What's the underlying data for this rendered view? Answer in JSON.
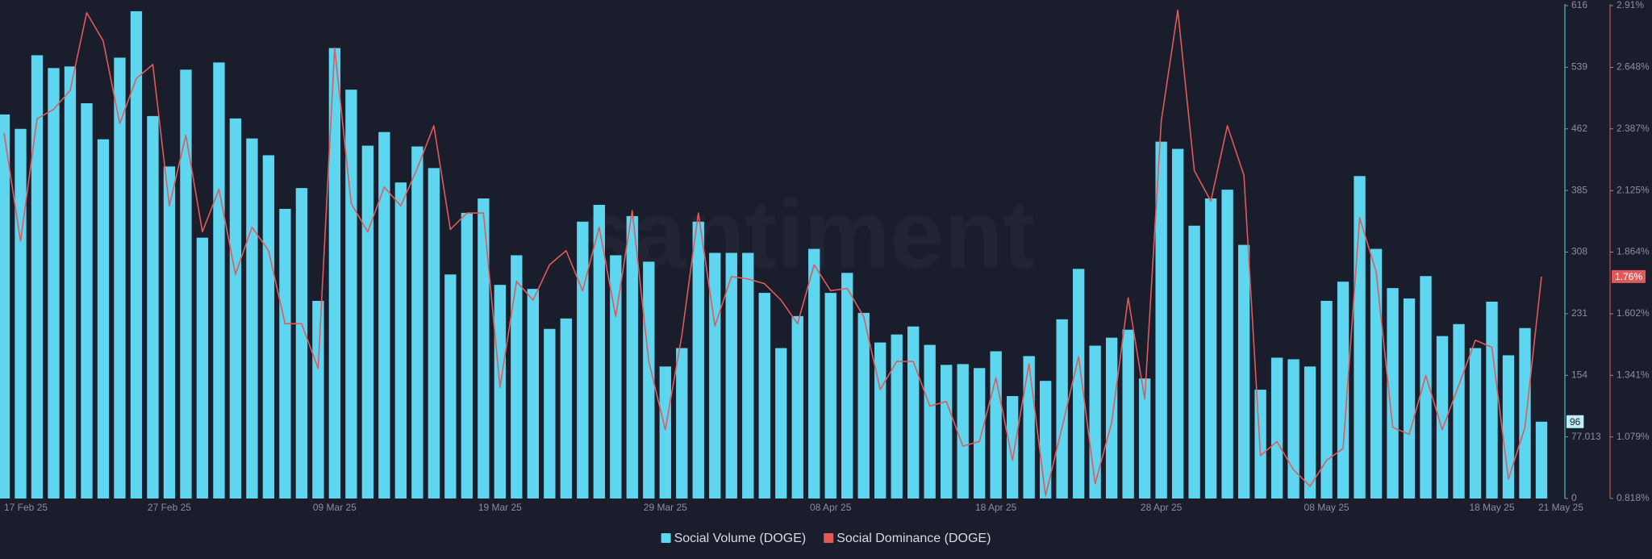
{
  "chart_data": {
    "type": "bar",
    "watermark": "santiment",
    "categories": [
      "17 Feb 25",
      null,
      null,
      null,
      null,
      null,
      null,
      null,
      null,
      null,
      "27 Feb 25",
      null,
      null,
      null,
      null,
      null,
      null,
      null,
      null,
      null,
      "09 Mar 25",
      null,
      null,
      null,
      null,
      null,
      null,
      null,
      null,
      null,
      "19 Mar 25",
      null,
      null,
      null,
      null,
      null,
      null,
      null,
      null,
      null,
      "29 Mar 25",
      null,
      null,
      null,
      null,
      null,
      null,
      null,
      null,
      null,
      "08 Apr 25",
      null,
      null,
      null,
      null,
      null,
      null,
      null,
      null,
      null,
      "18 Apr 25",
      null,
      null,
      null,
      null,
      null,
      null,
      null,
      null,
      null,
      "28 Apr 25",
      null,
      null,
      null,
      null,
      null,
      null,
      null,
      null,
      null,
      "08 May 25",
      null,
      null,
      null,
      null,
      null,
      null,
      null,
      null,
      null,
      "18 May 25",
      null,
      null,
      "21 May 25"
    ],
    "series": [
      {
        "name": "Social Volume (DOGE)",
        "type": "bar",
        "color": "#5ed6f0",
        "values": [
          480,
          462,
          554,
          538,
          540,
          494,
          449,
          551,
          609,
          478,
          415,
          536,
          326,
          545,
          475,
          450,
          429,
          362,
          388,
          247,
          563,
          511,
          441,
          458,
          395,
          440,
          413,
          280,
          357,
          375,
          267,
          304,
          262,
          212,
          225,
          346,
          367,
          304,
          353,
          296,
          165,
          188,
          346,
          307,
          307,
          307,
          257,
          188,
          228,
          312,
          257,
          282,
          232,
          195,
          205,
          215,
          192,
          167,
          168,
          163,
          184,
          128,
          178,
          147,
          224,
          287,
          191,
          201,
          211,
          150,
          446,
          437,
          341,
          375,
          386,
          317,
          136,
          176,
          174,
          165,
          247,
          271,
          403,
          312,
          263,
          250,
          278,
          203,
          218,
          188,
          246,
          179,
          213,
          96
        ]
      },
      {
        "name": "Social Dominance (DOGE)",
        "type": "line",
        "axis": "y2",
        "color": "#e05a5a",
        "values": [
          2.37,
          1.91,
          2.43,
          2.47,
          2.55,
          2.88,
          2.76,
          2.41,
          2.6,
          2.66,
          2.06,
          2.36,
          1.95,
          2.13,
          1.77,
          1.97,
          1.87,
          1.56,
          1.56,
          1.37,
          2.73,
          2.07,
          1.95,
          2.14,
          2.06,
          2.22,
          2.4,
          1.96,
          2.03,
          2.03,
          1.29,
          1.74,
          1.66,
          1.81,
          1.87,
          1.7,
          1.97,
          1.59,
          2.04,
          1.4,
          1.11,
          1.51,
          2.03,
          1.55,
          1.76,
          1.75,
          1.73,
          1.66,
          1.56,
          1.81,
          1.7,
          1.71,
          1.59,
          1.28,
          1.4,
          1.4,
          1.21,
          1.23,
          1.04,
          1.06,
          1.33,
          0.98,
          1.39,
          0.83,
          1.12,
          1.42,
          0.88,
          1.14,
          1.67,
          1.24,
          2.42,
          2.89,
          2.21,
          2.08,
          2.4,
          2.19,
          1.0,
          1.06,
          0.94,
          0.87,
          0.98,
          1.03,
          2.01,
          1.78,
          1.12,
          1.09,
          1.34,
          1.11,
          1.3,
          1.49,
          1.46,
          0.9,
          1.12,
          1.76
        ],
        "value_labels": [
          null,
          null,
          null,
          null,
          null,
          null,
          null,
          null,
          null,
          null,
          null,
          null,
          null,
          null,
          null,
          null,
          null,
          null,
          null,
          null,
          null,
          null,
          null,
          null,
          null,
          null,
          null,
          null,
          null,
          null,
          null,
          null,
          null,
          null,
          null,
          null,
          null,
          null,
          null,
          null,
          null,
          null,
          null,
          null,
          null,
          null,
          null,
          null,
          null,
          null,
          null,
          null,
          null,
          null,
          null,
          null,
          null,
          null,
          null,
          null,
          null,
          null,
          null,
          null,
          null,
          null,
          null,
          null,
          null,
          null,
          null,
          null,
          null,
          null,
          null,
          null,
          null,
          null,
          null,
          null,
          null,
          null,
          null,
          null,
          null,
          null,
          null,
          null,
          null,
          null,
          null,
          null,
          null,
          "1.76%"
        ]
      }
    ],
    "ylim": [
      0,
      616
    ],
    "yticks": [
      0,
      77.013,
      154,
      231,
      308,
      385,
      462,
      539,
      616
    ],
    "y2lim": [
      0.818,
      2.91
    ],
    "y2ticks": [
      {
        "value": 0.818,
        "label": "0.818%"
      },
      {
        "value": 1.079,
        "label": "1.079%"
      },
      {
        "value": 1.341,
        "label": "1.341%"
      },
      {
        "value": 1.602,
        "label": "1.602%"
      },
      {
        "value": 1.864,
        "label": "1.864%"
      },
      {
        "value": 2.125,
        "label": "2.125%"
      },
      {
        "value": 2.387,
        "label": "2.387%"
      },
      {
        "value": 2.648,
        "label": "2.648%"
      },
      {
        "value": 2.91,
        "label": "2.91%"
      }
    ],
    "grid": false,
    "legend": "bottom"
  }
}
